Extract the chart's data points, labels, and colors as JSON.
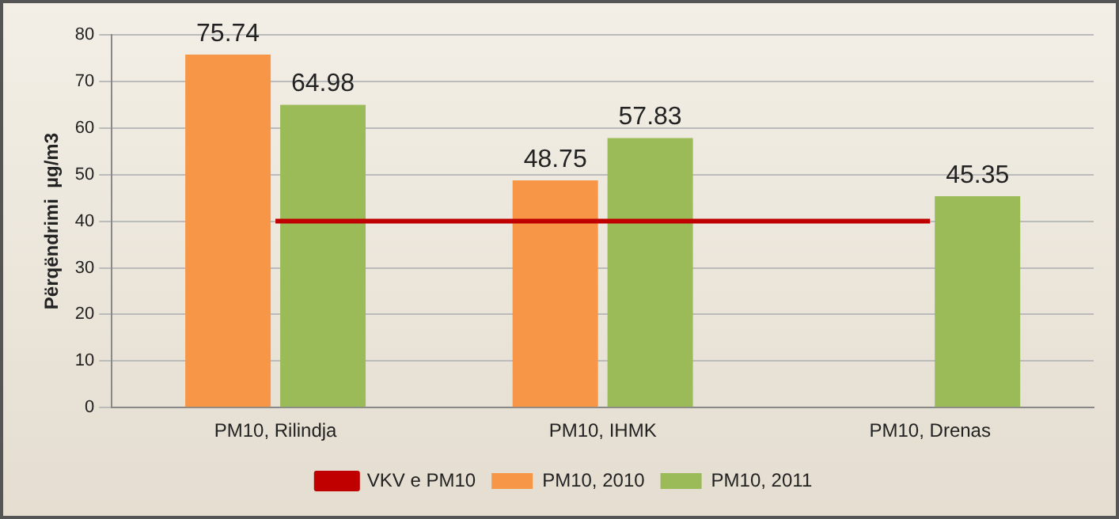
{
  "chart_data": {
    "type": "bar",
    "ylabel": "Përqëndrimi  µg/m3",
    "categories": [
      "PM10, Rilindja",
      "PM10, IHMK",
      "PM10, Drenas"
    ],
    "series": [
      {
        "name": "PM10, 2010",
        "color": "#f79646",
        "values": [
          75.74,
          48.75,
          null
        ],
        "value_labels": [
          "75.74",
          "48.75",
          null
        ]
      },
      {
        "name": "PM10, 2011",
        "color": "#9bbb59",
        "values": [
          64.98,
          57.83,
          45.35
        ],
        "value_labels": [
          "64.98",
          "57.83",
          "45.35"
        ]
      },
      {
        "name": "VKV e PM10",
        "type": "line",
        "color": "#c00000",
        "values": [
          40,
          40,
          40
        ]
      }
    ],
    "ylim": [
      0,
      80
    ],
    "yticks": [
      0,
      10,
      20,
      30,
      40,
      50,
      60,
      70,
      80
    ],
    "grid": "y",
    "legend": "bottom",
    "marker": "none"
  }
}
